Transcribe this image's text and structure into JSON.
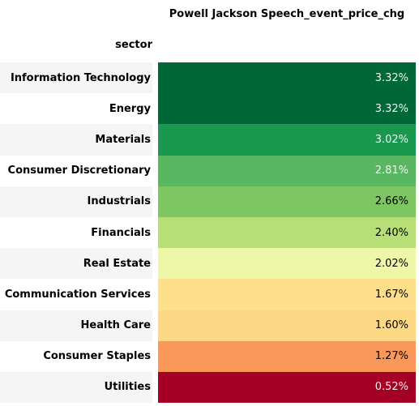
{
  "chart_data": {
    "type": "table",
    "column_header": "Powell Jackson Speech_event_price_chg",
    "index_header": "sector",
    "rows": [
      {
        "sector": "Information Technology",
        "value": 3.32,
        "display": "3.32%",
        "bg": "#006837",
        "fg": "#f1f1f1"
      },
      {
        "sector": "Energy",
        "value": 3.32,
        "display": "3.32%",
        "bg": "#006837",
        "fg": "#f1f1f1"
      },
      {
        "sector": "Materials",
        "value": 3.02,
        "display": "3.02%",
        "bg": "#1a9850",
        "fg": "#f1f1f1"
      },
      {
        "sector": "Consumer Discretionary",
        "value": 2.81,
        "display": "2.81%",
        "bg": "#5ab761",
        "fg": "#f1f1f1"
      },
      {
        "sector": "Industrials",
        "value": 2.66,
        "display": "2.66%",
        "bg": "#7ec662",
        "fg": "#000000"
      },
      {
        "sector": "Financials",
        "value": 2.4,
        "display": "2.40%",
        "bg": "#b6e075",
        "fg": "#000000"
      },
      {
        "sector": "Real Estate",
        "value": 2.02,
        "display": "2.02%",
        "bg": "#edf7a7",
        "fg": "#000000"
      },
      {
        "sector": "Communication Services",
        "value": 1.67,
        "display": "1.67%",
        "bg": "#fee08b",
        "fg": "#000000"
      },
      {
        "sector": "Health Care",
        "value": 1.6,
        "display": "1.60%",
        "bg": "#fed985",
        "fg": "#000000"
      },
      {
        "sector": "Consumer Staples",
        "value": 1.27,
        "display": "1.27%",
        "bg": "#f99858",
        "fg": "#000000"
      },
      {
        "sector": "Utilities",
        "value": 0.52,
        "display": "0.52%",
        "bg": "#a50026",
        "fg": "#f1f1f1"
      }
    ]
  }
}
